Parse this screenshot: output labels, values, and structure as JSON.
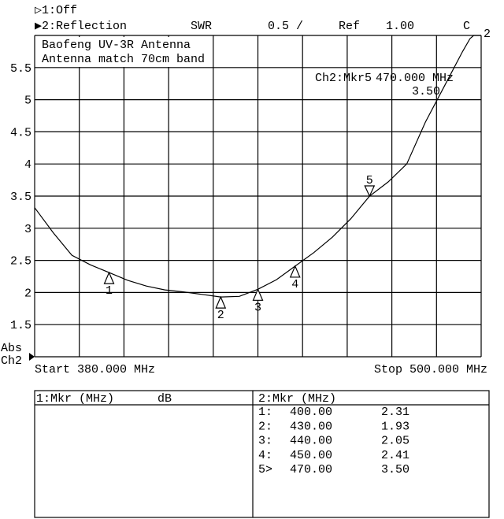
{
  "header": {
    "ch1_label": "▷1:Off",
    "ch2_label": "▶2:Reflection",
    "format": "SWR",
    "scale": "0.5 /",
    "ref_label": "Ref",
    "ref_value": "1.00",
    "correction": "C"
  },
  "title_lines": [
    "Baofeng UV-3R Antenna",
    "Antenna match 70cm band"
  ],
  "active_marker": {
    "label": "Ch2:Mkr5",
    "frequency": "470.000 MHz",
    "value": "3.50"
  },
  "axis": {
    "abs_label": "Abs",
    "channel_label": "Ch2",
    "start": "Start 380.000 MHz",
    "stop": "Stop 500.000 MHz",
    "trace_label": "2"
  },
  "chart_data": {
    "type": "line",
    "xlabel": "",
    "ylabel": "",
    "xlim": [
      380,
      500
    ],
    "ylim": [
      1.0,
      6.0
    ],
    "x_gridlines": 10,
    "yticks": [
      1.5,
      2,
      2.5,
      3,
      3.5,
      4,
      4.5,
      5,
      5.5
    ],
    "ytick_labels": [
      "1.5",
      "2",
      "2.5",
      "3",
      "3.5",
      "4",
      "4.5",
      "5",
      "5.5"
    ],
    "grid": true,
    "series": [
      {
        "x": [
          380,
          385,
          390,
          395,
          400,
          405,
          410,
          415,
          420,
          425,
          430,
          435,
          440,
          445,
          450,
          455,
          460,
          465,
          470,
          475,
          480,
          485,
          490,
          495,
          497,
          498,
          500
        ],
        "y": [
          3.32,
          2.93,
          2.58,
          2.43,
          2.31,
          2.19,
          2.1,
          2.04,
          2.01,
          1.97,
          1.93,
          1.94,
          2.05,
          2.2,
          2.41,
          2.62,
          2.86,
          3.15,
          3.5,
          3.72,
          4.0,
          4.65,
          5.2,
          5.75,
          5.95,
          6.0,
          6.0
        ]
      }
    ],
    "markers": [
      {
        "id": "1",
        "x": 400,
        "y": 2.31
      },
      {
        "id": "2",
        "x": 430,
        "y": 1.93
      },
      {
        "id": "3",
        "x": 440,
        "y": 2.05
      },
      {
        "id": "4",
        "x": 450,
        "y": 2.41
      },
      {
        "id": "5",
        "x": 470,
        "y": 3.5,
        "active": true
      }
    ]
  },
  "table": {
    "left_header": "1:Mkr (MHz)",
    "left_unit": "dB",
    "right_header": "2:Mkr (MHz)",
    "rows": [
      {
        "id": "1:",
        "freq": "400.00",
        "value": "2.31"
      },
      {
        "id": "2:",
        "freq": "430.00",
        "value": "1.93"
      },
      {
        "id": "3:",
        "freq": "440.00",
        "value": "2.05"
      },
      {
        "id": "4:",
        "freq": "450.00",
        "value": "2.41"
      },
      {
        "id": "5>",
        "freq": "470.00",
        "value": "3.50"
      }
    ]
  }
}
